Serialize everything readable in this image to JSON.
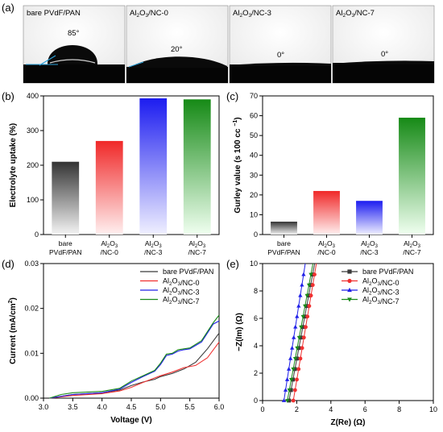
{
  "panels": {
    "a": {
      "label": "(a)",
      "images": [
        {
          "title": "bare PVdF/PAN",
          "angle_text": "85°",
          "contact_angle_deg": 85
        },
        {
          "title": "Al2O3/NC-0",
          "angle_text": "20°",
          "contact_angle_deg": 20
        },
        {
          "title": "Al2O3/NC-3",
          "angle_text": "0°",
          "contact_angle_deg": 0
        },
        {
          "title": "Al2O3/NC-7",
          "angle_text": "0°",
          "contact_angle_deg": 0
        }
      ]
    },
    "b": {
      "label": "(b)"
    },
    "c": {
      "label": "(c)"
    },
    "d": {
      "label": "(d)"
    },
    "e": {
      "label": "(e)"
    }
  },
  "colors": {
    "black": "#3a3a3a",
    "red": "#f03030",
    "blue": "#2020e8",
    "green": "#1a8a1a"
  },
  "chart_data": [
    {
      "id": "b",
      "type": "bar",
      "categories": [
        "bare PVdF/PAN",
        "Al2O3/NC-0",
        "Al2O3/NC-3",
        "Al2O3/NC-7"
      ],
      "tick_labels": [
        [
          "bare",
          "PVdF/PAN"
        ],
        [
          "Al2O3",
          "/NC-0"
        ],
        [
          "Al2O3",
          "/NC-3"
        ],
        [
          "Al2O3",
          "/NC-7"
        ]
      ],
      "values": [
        210,
        270,
        393,
        390
      ],
      "ylabel": "Electrolyte uptake (%)",
      "ylim": [
        0,
        400
      ],
      "yticks": [
        0,
        100,
        200,
        300,
        400
      ]
    },
    {
      "id": "c",
      "type": "bar",
      "categories": [
        "bare PVdF/PAN",
        "Al2O3/NC-0",
        "Al2O3/NC-3",
        "Al2O3/NC-7"
      ],
      "tick_labels": [
        [
          "bare",
          "PVdF/PAN"
        ],
        [
          "Al2O3",
          "/NC-0"
        ],
        [
          "Al2O3",
          "/NC-3"
        ],
        [
          "Al2O3",
          "/NC-7"
        ]
      ],
      "values": [
        6.5,
        22,
        17,
        59
      ],
      "ylabel": "Gurley value (s 100 cc⁻¹)",
      "ylim": [
        0,
        70
      ],
      "yticks": [
        0,
        10,
        20,
        30,
        40,
        50,
        60,
        70
      ]
    },
    {
      "id": "d",
      "type": "line",
      "xlabel": "Voltage (V)",
      "ylabel": "Current (mA/cm²)",
      "xlim": [
        3.0,
        6.0
      ],
      "ylim": [
        0,
        0.03
      ],
      "xticks": [
        "3.0",
        "3.5",
        "4.0",
        "4.5",
        "5.0",
        "5.5",
        "6.0"
      ],
      "yticks": [
        "0.00",
        "0.01",
        "0.02",
        "0.03"
      ],
      "legend": "top-right",
      "series": [
        {
          "name": "bare PVdF/PAN",
          "x": [
            3.1,
            3.5,
            4.0,
            4.3,
            4.5,
            4.7,
            4.9,
            5.0,
            5.2,
            5.4,
            5.6,
            5.8,
            6.0
          ],
          "y": [
            0,
            0.0008,
            0.0012,
            0.0018,
            0.0028,
            0.0036,
            0.0042,
            0.0048,
            0.0055,
            0.0065,
            0.008,
            0.011,
            0.0145
          ]
        },
        {
          "name": "Al2O3/NC-0",
          "x": [
            3.1,
            3.5,
            4.0,
            4.3,
            4.5,
            4.7,
            4.9,
            5.0,
            5.2,
            5.4,
            5.6,
            5.8,
            6.0
          ],
          "y": [
            0,
            0.0006,
            0.001,
            0.0016,
            0.0024,
            0.0035,
            0.0045,
            0.005,
            0.0058,
            0.0068,
            0.0073,
            0.009,
            0.0125
          ]
        },
        {
          "name": "Al2O3/NC-3",
          "x": [
            3.1,
            3.5,
            4.0,
            4.3,
            4.5,
            4.7,
            4.9,
            5.0,
            5.1,
            5.2,
            5.3,
            5.4,
            5.5,
            5.7,
            5.9,
            6.0
          ],
          "y": [
            0,
            0.0008,
            0.0012,
            0.002,
            0.0035,
            0.0048,
            0.006,
            0.0075,
            0.0095,
            0.0098,
            0.0105,
            0.0108,
            0.011,
            0.0125,
            0.0165,
            0.0172
          ]
        },
        {
          "name": "Al2O3/NC-7",
          "x": [
            3.1,
            3.3,
            3.5,
            4.0,
            4.3,
            4.5,
            4.7,
            4.9,
            5.0,
            5.1,
            5.2,
            5.3,
            5.4,
            5.5,
            5.7,
            5.9,
            6.0
          ],
          "y": [
            0,
            0.0008,
            0.0012,
            0.0015,
            0.0022,
            0.0038,
            0.005,
            0.0062,
            0.0078,
            0.0098,
            0.01,
            0.0108,
            0.011,
            0.0112,
            0.0128,
            0.0168,
            0.0185
          ]
        }
      ]
    },
    {
      "id": "e",
      "type": "scatter",
      "xlabel": "Z(Re) (Ω)",
      "ylabel": "−Z(Im) (Ω)",
      "xlim": [
        0,
        10
      ],
      "ylim": [
        0,
        10
      ],
      "xticks": [
        "0",
        "2",
        "4",
        "6",
        "8",
        "10"
      ],
      "yticks": [
        "0",
        "2",
        "4",
        "6",
        "8",
        "10"
      ],
      "legend": "top-right",
      "series": [
        {
          "name": "bare PVdF/PAN",
          "marker": "square",
          "x0": 1.55,
          "x1": 3.05,
          "slope_note": "line from (x0,0) to (x1,10)"
        },
        {
          "name": "Al2O3/NC-0",
          "marker": "circle",
          "x0": 1.8,
          "x1": 3.15
        },
        {
          "name": "Al2O3/NC-3",
          "marker": "triangle-up",
          "x0": 1.25,
          "x1": 2.5
        },
        {
          "name": "Al2O3/NC-7",
          "marker": "triangle-down",
          "x0": 1.45,
          "x1": 2.95
        }
      ]
    }
  ]
}
